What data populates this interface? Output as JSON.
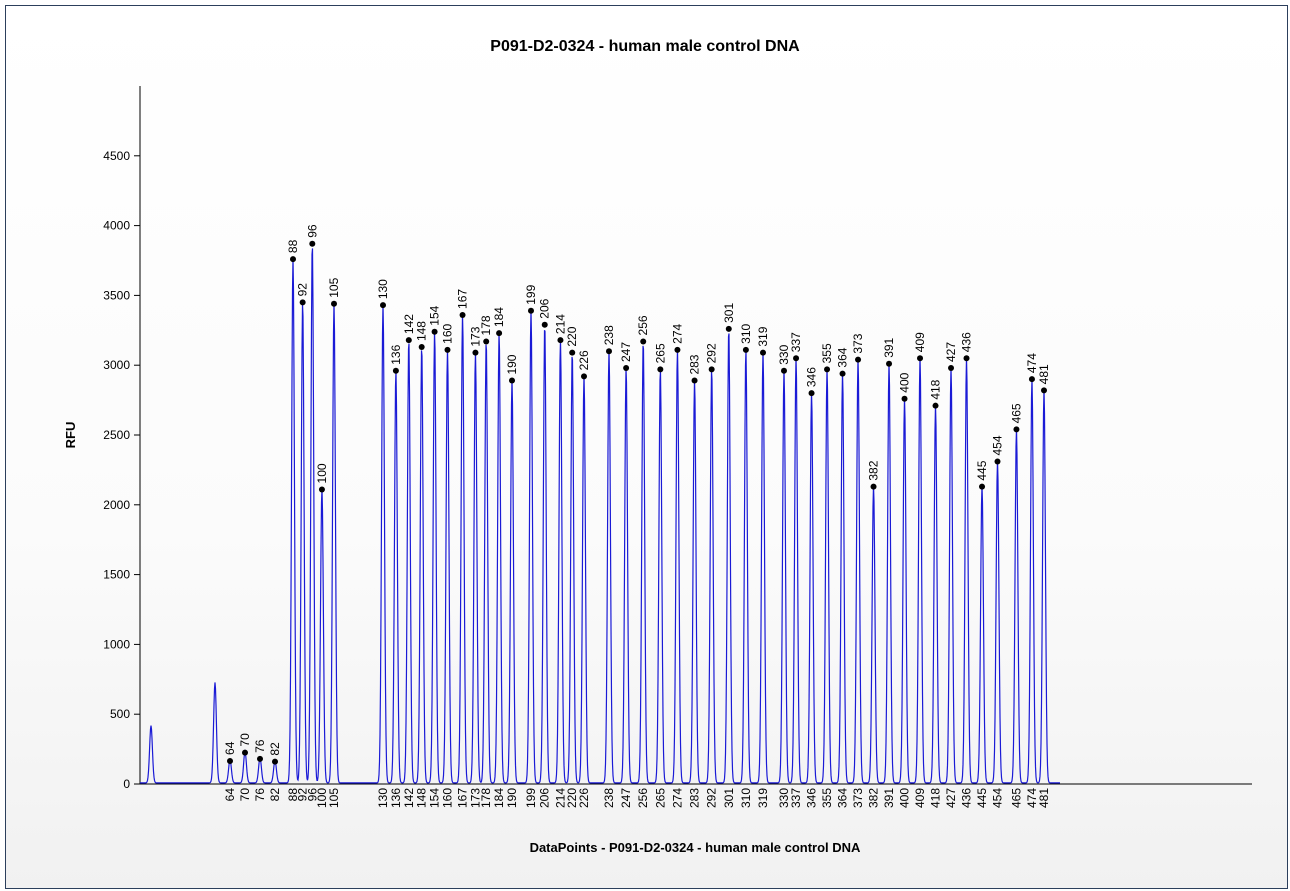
{
  "chart_data": {
    "type": "line",
    "title": "P091-D2-0324 - human male control DNA",
    "xlabel": "DataPoints - P091-D2-0324 - human male control DNA",
    "ylabel": "RFU",
    "ylim": [
      0,
      5000
    ],
    "yticks": [
      0,
      500,
      1000,
      1500,
      2000,
      2500,
      3000,
      3500,
      4000,
      4500
    ],
    "grid": false,
    "series_color": "#1a1ad6",
    "marker_color": "#000000",
    "unlabeled_peaks": [
      {
        "x": 14,
        "y": 410
      },
      {
        "x": 56,
        "y": 720
      }
    ],
    "peaks": [
      {
        "label": "64",
        "x": 64,
        "y": 165
      },
      {
        "label": "70",
        "x": 70,
        "y": 225
      },
      {
        "label": "76",
        "x": 76,
        "y": 180
      },
      {
        "label": "82",
        "x": 82,
        "y": 160
      },
      {
        "label": "88",
        "x": 88,
        "y": 3760
      },
      {
        "label": "92",
        "x": 92,
        "y": 3450
      },
      {
        "label": "96",
        "x": 96,
        "y": 3870
      },
      {
        "label": "100",
        "x": 100,
        "y": 2110
      },
      {
        "label": "105",
        "x": 105,
        "y": 3440
      },
      {
        "label": "130",
        "x": 130,
        "y": 3430
      },
      {
        "label": "136",
        "x": 136,
        "y": 2960
      },
      {
        "label": "142",
        "x": 142,
        "y": 3180
      },
      {
        "label": "148",
        "x": 148,
        "y": 3130
      },
      {
        "label": "154",
        "x": 154,
        "y": 3240
      },
      {
        "label": "160",
        "x": 160,
        "y": 3110
      },
      {
        "label": "167",
        "x": 167,
        "y": 3360
      },
      {
        "label": "173",
        "x": 173,
        "y": 3090
      },
      {
        "label": "178",
        "x": 178,
        "y": 3170
      },
      {
        "label": "184",
        "x": 184,
        "y": 3230
      },
      {
        "label": "190",
        "x": 190,
        "y": 2890
      },
      {
        "label": "199",
        "x": 199,
        "y": 3390
      },
      {
        "label": "206",
        "x": 206,
        "y": 3290
      },
      {
        "label": "214",
        "x": 214,
        "y": 3180
      },
      {
        "label": "220",
        "x": 220,
        "y": 3090
      },
      {
        "label": "226",
        "x": 226,
        "y": 2920
      },
      {
        "label": "238",
        "x": 238,
        "y": 3100
      },
      {
        "label": "247",
        "x": 247,
        "y": 2980
      },
      {
        "label": "256",
        "x": 256,
        "y": 3170
      },
      {
        "label": "265",
        "x": 265,
        "y": 2970
      },
      {
        "label": "274",
        "x": 274,
        "y": 3110
      },
      {
        "label": "283",
        "x": 283,
        "y": 2890
      },
      {
        "label": "292",
        "x": 292,
        "y": 2970
      },
      {
        "label": "301",
        "x": 301,
        "y": 3260
      },
      {
        "label": "310",
        "x": 310,
        "y": 3110
      },
      {
        "label": "319",
        "x": 319,
        "y": 3090
      },
      {
        "label": "330",
        "x": 330,
        "y": 2960
      },
      {
        "label": "337",
        "x": 337,
        "y": 3050
      },
      {
        "label": "346",
        "x": 346,
        "y": 2800
      },
      {
        "label": "355",
        "x": 355,
        "y": 2970
      },
      {
        "label": "364",
        "x": 364,
        "y": 2940
      },
      {
        "label": "373",
        "x": 373,
        "y": 3040
      },
      {
        "label": "382",
        "x": 382,
        "y": 2130
      },
      {
        "label": "391",
        "x": 391,
        "y": 3010
      },
      {
        "label": "400",
        "x": 400,
        "y": 2760
      },
      {
        "label": "409",
        "x": 409,
        "y": 3050
      },
      {
        "label": "418",
        "x": 418,
        "y": 2710
      },
      {
        "label": "427",
        "x": 427,
        "y": 2980
      },
      {
        "label": "436",
        "x": 436,
        "y": 3050
      },
      {
        "label": "445",
        "x": 445,
        "y": 2130
      },
      {
        "label": "454",
        "x": 454,
        "y": 2310
      },
      {
        "label": "465",
        "x": 465,
        "y": 2540
      },
      {
        "label": "474",
        "x": 474,
        "y": 2900
      },
      {
        "label": "481",
        "x": 481,
        "y": 2820
      }
    ]
  }
}
